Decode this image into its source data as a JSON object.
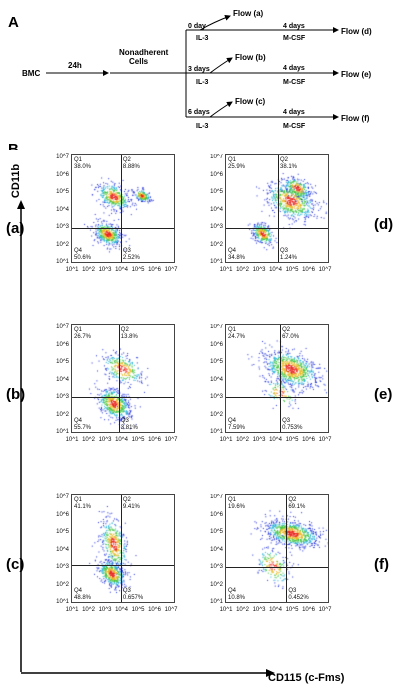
{
  "panel_a": {
    "letter": "A",
    "bmc": "BMC",
    "t24": "24h",
    "nonadherent_line1": "Nonadherent",
    "nonadherent_line2": "Cells",
    "branches": [
      {
        "day": "0 day",
        "flow": "Flow (a)",
        "il3": "IL-3",
        "days4": "4 days",
        "mcsf": "M-CSF",
        "final": "Flow (d)"
      },
      {
        "day": "3 days",
        "flow": "Flow (b)",
        "il3": "IL-3",
        "days4": "4 days",
        "mcsf": "M-CSF",
        "final": "Flow (e)"
      },
      {
        "day": "6 days",
        "flow": "Flow (c)",
        "il3": "IL-3",
        "days4": "4 days",
        "mcsf": "M-CSF",
        "final": "Flow (f)"
      }
    ]
  },
  "panel_b": {
    "letter": "B",
    "y_axis_label": "CD11b",
    "x_axis_label": "CD115 (c-Fms)",
    "y_ticks": [
      "10^7",
      "10^6",
      "10^5",
      "10^4",
      "10^3",
      "10^2",
      "10^1"
    ],
    "x_ticks": [
      "10^1",
      "10^2",
      "10^3",
      "10^4",
      "10^5",
      "10^6",
      "10^7"
    ],
    "plots": [
      {
        "label": "(a)",
        "q1": "38.0%",
        "q2": "8.88%",
        "q3": "2.52%",
        "q4": "50.6%"
      },
      {
        "label": "(d)",
        "q1": "25.9%",
        "q2": "38.1%",
        "q3": "1.24%",
        "q4": "34.8%"
      },
      {
        "label": "(b)",
        "q1": "26.7%",
        "q2": "13.8%",
        "q3": "3.81%",
        "q4": "55.7%"
      },
      {
        "label": "(e)",
        "q1": "24.7%",
        "q2": "67.0%",
        "q3": "0.753%",
        "q4": "7.59%"
      },
      {
        "label": "(c)",
        "q1": "41.1%",
        "q2": "9.41%",
        "q3": "0.657%",
        "q4": "48.8%"
      },
      {
        "label": "(f)",
        "q1": "19.6%",
        "q2": "69.1%",
        "q3": "0.452%",
        "q4": "10.8%"
      }
    ],
    "quadrant_names": [
      "Q1",
      "Q2",
      "Q3",
      "Q4"
    ]
  }
}
